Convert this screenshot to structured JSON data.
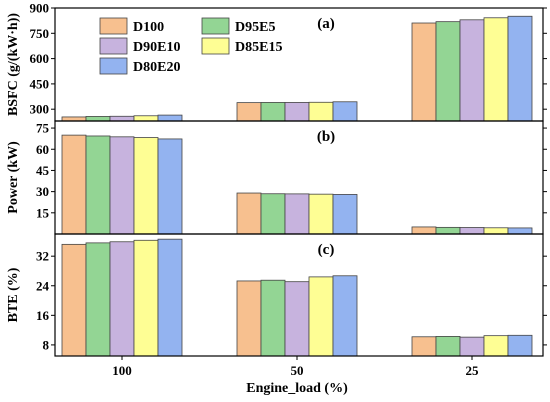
{
  "chart_data": {
    "type": "bar",
    "categories": [
      "100",
      "50",
      "25"
    ],
    "xlabel": "Engine_load (%)",
    "legend": {
      "placement": "top-left",
      "entries": [
        "D100",
        "D95E5",
        "D90E10",
        "D85E15",
        "D80E20"
      ]
    },
    "colors": [
      "#f7c08f",
      "#93d594",
      "#c7b3de",
      "#fefe94",
      "#93b3f0"
    ],
    "panels": [
      {
        "label": "(a)",
        "ylabel": "BSFC (g/(kW·h))",
        "ylim": [
          230,
          900
        ],
        "yticks": [
          300,
          450,
          600,
          750,
          900
        ],
        "series": [
          {
            "name": "D100",
            "values": [
              254,
              339,
              811
            ]
          },
          {
            "name": "D95E5",
            "values": [
              257,
              340,
              819
            ]
          },
          {
            "name": "D90E10",
            "values": [
              258,
              340,
              830
            ]
          },
          {
            "name": "D85E15",
            "values": [
              261,
              341,
              842
            ]
          },
          {
            "name": "D80E20",
            "values": [
              265,
              344,
              851
            ]
          }
        ]
      },
      {
        "label": "(b)",
        "ylabel": "Power (kW)",
        "ylim": [
          0,
          80
        ],
        "yticks": [
          15,
          30,
          45,
          60,
          75
        ],
        "series": [
          {
            "name": "D100",
            "values": [
              70,
              29,
              5
            ]
          },
          {
            "name": "D95E5",
            "values": [
              69.4,
              28.5,
              4.7
            ]
          },
          {
            "name": "D90E10",
            "values": [
              68.8,
              28.4,
              4.6
            ]
          },
          {
            "name": "D85E15",
            "values": [
              68.3,
              28.2,
              4.4
            ]
          },
          {
            "name": "D80E20",
            "values": [
              67.3,
              28.0,
              4.3
            ]
          }
        ]
      },
      {
        "label": "(c)",
        "ylabel": "BTE (%)",
        "ylim": [
          5,
          38
        ],
        "yticks": [
          8,
          16,
          24,
          32
        ],
        "series": [
          {
            "name": "D100",
            "values": [
              35.2,
              25.3,
              10.2
            ]
          },
          {
            "name": "D95E5",
            "values": [
              35.6,
              25.5,
              10.3
            ]
          },
          {
            "name": "D90E10",
            "values": [
              35.9,
              25.1,
              10.1
            ]
          },
          {
            "name": "D85E15",
            "values": [
              36.3,
              26.4,
              10.5
            ]
          },
          {
            "name": "D80E20",
            "values": [
              36.6,
              26.7,
              10.6
            ]
          }
        ]
      }
    ]
  }
}
